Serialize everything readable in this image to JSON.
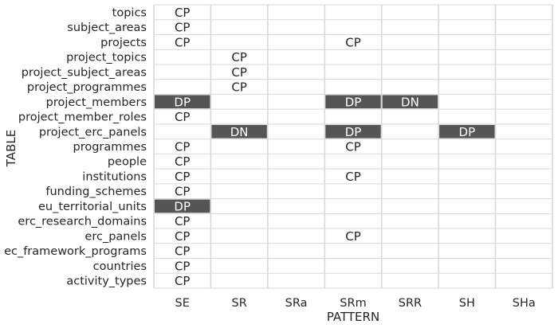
{
  "chart_data": {
    "type": "heatmap",
    "xlabel": "PATTERN",
    "ylabel": "TABLE",
    "columns": [
      "SE",
      "SR",
      "SRa",
      "SRm",
      "SRR",
      "SH",
      "SHa"
    ],
    "rows": [
      "topics",
      "subject_areas",
      "projects",
      "project_topics",
      "project_subject_areas",
      "project_programmes",
      "project_members",
      "project_member_roles",
      "project_erc_panels",
      "programmes",
      "people",
      "institutions",
      "funding_schemes",
      "eu_territorial_units",
      "erc_research_domains",
      "erc_panels",
      "ec_framework_programs",
      "countries",
      "activity_types"
    ],
    "cells": [
      [
        "CP",
        "",
        "",
        "",
        "",
        "",
        ""
      ],
      [
        "CP",
        "",
        "",
        "",
        "",
        "",
        ""
      ],
      [
        "CP",
        "",
        "",
        "CP",
        "",
        "",
        ""
      ],
      [
        "",
        "CP",
        "",
        "",
        "",
        "",
        ""
      ],
      [
        "",
        "CP",
        "",
        "",
        "",
        "",
        ""
      ],
      [
        "",
        "CP",
        "",
        "",
        "",
        "",
        ""
      ],
      [
        "DP",
        "",
        "",
        "DP",
        "DN",
        "",
        ""
      ],
      [
        "CP",
        "",
        "",
        "",
        "",
        "",
        ""
      ],
      [
        "",
        "DN",
        "",
        "DP",
        "",
        "DP",
        ""
      ],
      [
        "CP",
        "",
        "",
        "CP",
        "",
        "",
        ""
      ],
      [
        "CP",
        "",
        "",
        "",
        "",
        "",
        ""
      ],
      [
        "CP",
        "",
        "",
        "CP",
        "",
        "",
        ""
      ],
      [
        "CP",
        "",
        "",
        "",
        "",
        "",
        ""
      ],
      [
        "DP",
        "",
        "",
        "",
        "",
        "",
        ""
      ],
      [
        "CP",
        "",
        "",
        "",
        "",
        "",
        ""
      ],
      [
        "CP",
        "",
        "",
        "CP",
        "",
        "",
        ""
      ],
      [
        "CP",
        "",
        "",
        "",
        "",
        "",
        ""
      ],
      [
        "CP",
        "",
        "",
        "",
        "",
        "",
        ""
      ],
      [
        "CP",
        "",
        "",
        "",
        "",
        "",
        ""
      ]
    ],
    "grid": true
  },
  "colors": {
    "background": "#ffffff",
    "grid": "#d9d9d9",
    "filled_cell": "#555555",
    "filled_text": "#ffffff",
    "plain_text": "#262626",
    "label_text": "#262626"
  }
}
